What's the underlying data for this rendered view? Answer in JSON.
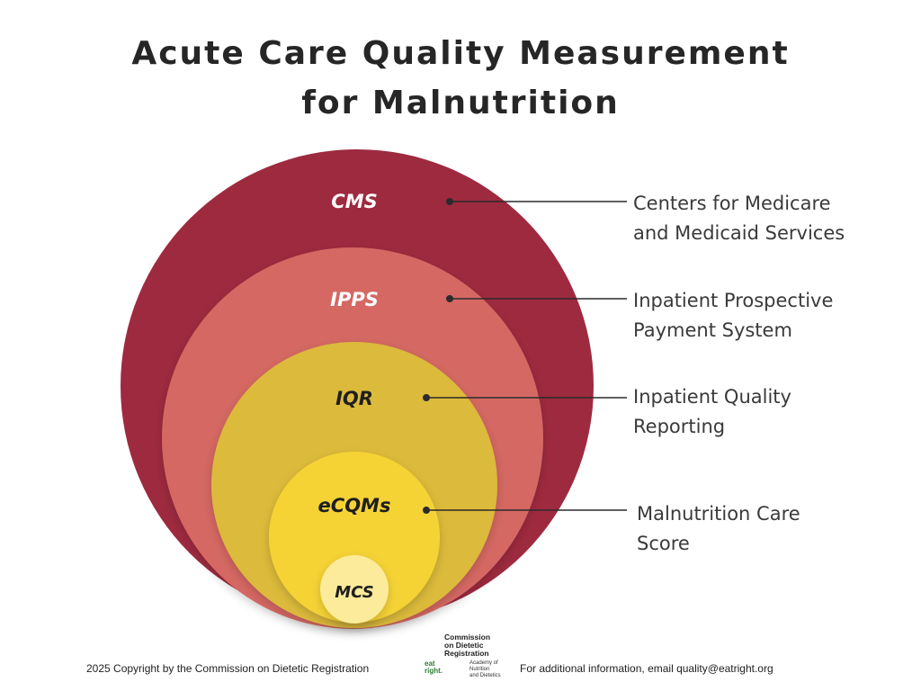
{
  "title": {
    "line1": "Acute Care Quality Measurement",
    "line2": "for Malnutrition"
  },
  "colors": {
    "cms": "#9e2a3f",
    "ipps": "#d56764",
    "iqr": "#dcba3a",
    "ecqms": "#f5d334",
    "mcs": "#fbeb9a",
    "connector": "#2b2b2b"
  },
  "levels": [
    {
      "label": "CMS",
      "description_lines": [
        "Centers for Medicare",
        "and Medicaid Services"
      ]
    },
    {
      "label": "IPPS",
      "description_lines": [
        "Inpatient Prospective",
        "Payment System"
      ]
    },
    {
      "label": "IQR",
      "description_lines": [
        "Inpatient Quality",
        "Reporting"
      ]
    },
    {
      "label": "eCQMs",
      "description_lines": [
        "Malnutrition Care",
        "Score"
      ]
    },
    {
      "label": "MCS",
      "description_lines": []
    }
  ],
  "footer": {
    "copyright": "2025 Copyright by the Commission on Dietetic Registration",
    "contact": "For additional information, email quality@eatright.org"
  },
  "logo": {
    "org_lines": [
      "Commission",
      "on Dietetic",
      "Registration"
    ],
    "mark_lines": [
      "eat",
      "right."
    ],
    "sub_lines": [
      "Academy of Nutrition",
      "and Dietetics"
    ]
  }
}
